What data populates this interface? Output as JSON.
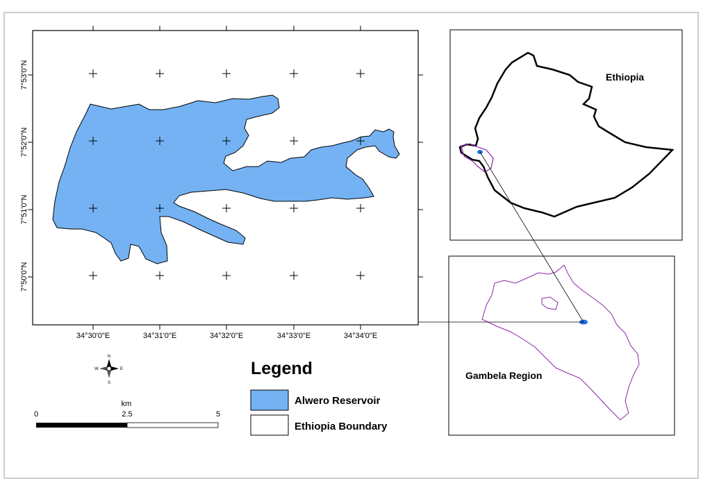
{
  "main_map": {
    "x_ticks": [
      "34°30'0\"E",
      "34°31'0\"E",
      "34°32'0\"E",
      "34°33'0\"E",
      "34°34'0\"E"
    ],
    "y_ticks": [
      "7°53'0\"N",
      "7°52'0\"N",
      "7°51'0\"N",
      "7°50'0\"N"
    ],
    "reservoir_color": "#74b2f4"
  },
  "inset_ethiopia": {
    "label": "Ethiopia"
  },
  "inset_gambela": {
    "label": "Gambela Region",
    "boundary_color": "#8e24aa"
  },
  "legend": {
    "title": "Legend",
    "items": [
      {
        "label": "Alwero Reservoir",
        "color": "#74b2f4"
      },
      {
        "label": "Ethiopia  Boundary",
        "color": "#ffffff"
      }
    ]
  },
  "scale_bar": {
    "unit": "km",
    "labels": [
      "0",
      "2.5",
      "5"
    ]
  },
  "north_arrow": {
    "letters": [
      "N",
      "E",
      "S",
      "W"
    ]
  }
}
